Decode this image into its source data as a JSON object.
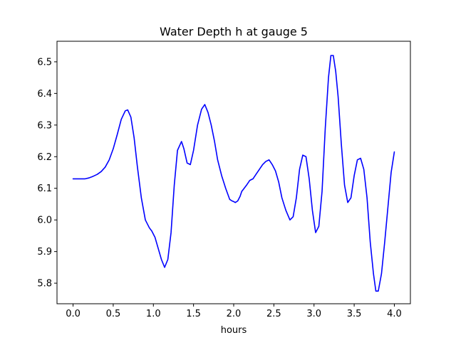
{
  "chart_data": {
    "type": "line",
    "title": "Water Depth h at gauge 5",
    "xlabel": "hours",
    "ylabel": "",
    "xlim": [
      -0.2,
      4.2
    ],
    "ylim": [
      5.735,
      6.565
    ],
    "xticks": [
      0.0,
      0.5,
      1.0,
      1.5,
      2.0,
      2.5,
      3.0,
      3.5,
      4.0
    ],
    "xtick_labels": [
      "0.0",
      "0.5",
      "1.0",
      "1.5",
      "2.0",
      "2.5",
      "3.0",
      "3.5",
      "4.0"
    ],
    "yticks": [
      5.8,
      5.9,
      6.0,
      6.1,
      6.2,
      6.3,
      6.4,
      6.5
    ],
    "ytick_labels": [
      "5.8",
      "5.9",
      "6.0",
      "6.1",
      "6.2",
      "6.3",
      "6.4",
      "6.5"
    ],
    "grid": false,
    "series": [
      {
        "color": "#0000ff",
        "x": [
          0.0,
          0.1,
          0.15,
          0.2,
          0.25,
          0.3,
          0.35,
          0.4,
          0.45,
          0.5,
          0.55,
          0.6,
          0.65,
          0.68,
          0.72,
          0.76,
          0.8,
          0.85,
          0.9,
          0.95,
          0.98,
          1.02,
          1.06,
          1.1,
          1.14,
          1.18,
          1.22,
          1.26,
          1.3,
          1.35,
          1.38,
          1.42,
          1.46,
          1.5,
          1.55,
          1.6,
          1.64,
          1.68,
          1.72,
          1.76,
          1.8,
          1.85,
          1.9,
          1.95,
          1.98,
          2.0,
          2.02,
          2.05,
          2.08,
          2.1,
          2.13,
          2.16,
          2.2,
          2.24,
          2.28,
          2.32,
          2.36,
          2.4,
          2.44,
          2.48,
          2.52,
          2.56,
          2.6,
          2.65,
          2.7,
          2.74,
          2.78,
          2.82,
          2.86,
          2.9,
          2.94,
          2.98,
          3.02,
          3.06,
          3.1,
          3.14,
          3.18,
          3.21,
          3.24,
          3.27,
          3.3,
          3.34,
          3.38,
          3.42,
          3.46,
          3.5,
          3.54,
          3.58,
          3.62,
          3.66,
          3.7,
          3.74,
          3.77,
          3.8,
          3.84,
          3.88,
          3.92,
          3.96,
          4.0
        ],
        "y": [
          6.13,
          6.13,
          6.13,
          6.133,
          6.138,
          6.144,
          6.153,
          6.167,
          6.19,
          6.225,
          6.27,
          6.318,
          6.345,
          6.348,
          6.325,
          6.26,
          6.17,
          6.07,
          6.0,
          5.975,
          5.965,
          5.945,
          5.91,
          5.875,
          5.85,
          5.875,
          5.96,
          6.11,
          6.22,
          6.248,
          6.225,
          6.18,
          6.175,
          6.22,
          6.3,
          6.35,
          6.365,
          6.34,
          6.3,
          6.25,
          6.19,
          6.14,
          6.1,
          6.065,
          6.06,
          6.058,
          6.055,
          6.06,
          6.075,
          6.09,
          6.1,
          6.11,
          6.125,
          6.13,
          6.145,
          6.16,
          6.175,
          6.185,
          6.19,
          6.175,
          6.155,
          6.12,
          6.07,
          6.03,
          6.0,
          6.01,
          6.07,
          6.16,
          6.205,
          6.2,
          6.13,
          6.03,
          5.96,
          5.98,
          6.09,
          6.29,
          6.45,
          6.52,
          6.52,
          6.47,
          6.39,
          6.24,
          6.11,
          6.055,
          6.07,
          6.14,
          6.19,
          6.195,
          6.16,
          6.07,
          5.93,
          5.83,
          5.775,
          5.775,
          5.83,
          5.93,
          6.04,
          6.15,
          6.215
        ]
      }
    ]
  }
}
